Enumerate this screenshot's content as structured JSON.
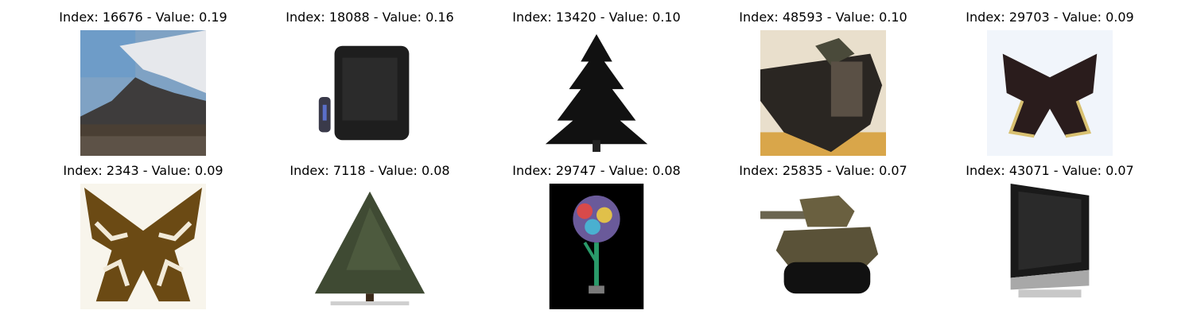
{
  "panels": [
    {
      "title": "Index: 16676 - Value: 0.19",
      "subject": "mountain-photo"
    },
    {
      "title": "Index: 18088 - Value: 0.16",
      "subject": "crt-television-photo"
    },
    {
      "title": "Index: 13420 - Value: 0.10",
      "subject": "pine-tree-silhouette-photo"
    },
    {
      "title": "Index: 48593 - Value: 0.10",
      "subject": "tank-photo"
    },
    {
      "title": "Index: 29703 - Value: 0.09",
      "subject": "butterfly-photo"
    },
    {
      "title": "Index: 2343 - Value: 0.09",
      "subject": "butterfly-photo"
    },
    {
      "title": "Index: 7118 - Value: 0.08",
      "subject": "evergreen-tree-photo"
    },
    {
      "title": "Index: 29747 - Value: 0.08",
      "subject": "flower-vase-photo"
    },
    {
      "title": "Index: 25835 - Value: 0.07",
      "subject": "tank-photo"
    },
    {
      "title": "Index: 43071 - Value: 0.07",
      "subject": "flat-screen-tv-photo"
    }
  ]
}
